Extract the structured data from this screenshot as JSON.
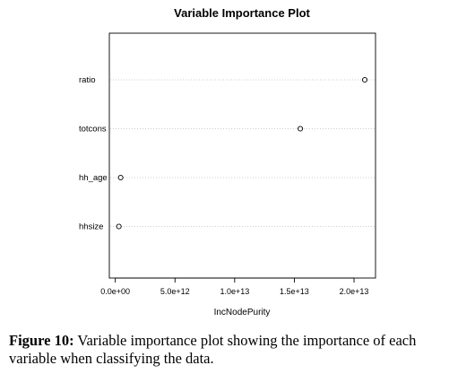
{
  "chart_data": {
    "type": "scatter",
    "title": "Variable Importance Plot",
    "xlabel": "IncNodePurity",
    "ylabel": "",
    "categories": [
      "ratio",
      "totcons",
      "hh_age",
      "hhsize"
    ],
    "values": [
      20900000000000.0,
      15500000000000.0,
      450000000000.0,
      300000000000.0
    ],
    "xlim": [
      -500000000000.0,
      21800000000000.0
    ],
    "xticks": [
      0,
      5000000000000.0,
      10000000000000.0,
      15000000000000.0,
      20000000000000.0
    ],
    "xtick_labels": [
      "0.0e+00",
      "5.0e+12",
      "1.0e+13",
      "1.5e+13",
      "2.0e+13"
    ],
    "grid": "dotted horizontal lines per variable",
    "marker": "open circle"
  },
  "caption": {
    "label": "Figure 10:",
    "text": " Variable importance plot showing the importance of each variable when classifying the data."
  },
  "colors": {
    "axis": "#000000",
    "grid": "#bdbdbd",
    "marker": "#000000"
  }
}
